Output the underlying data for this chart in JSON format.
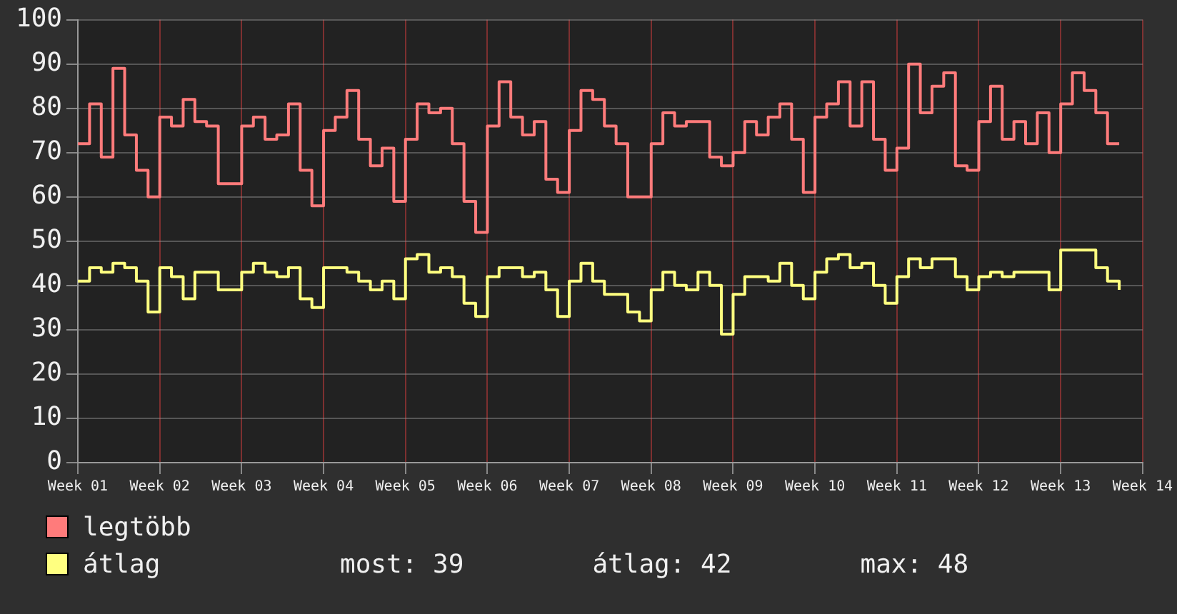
{
  "chart_data": {
    "type": "step",
    "categories": [
      "Week 01",
      null,
      null,
      null,
      null,
      null,
      null,
      "Week 02",
      null,
      null,
      null,
      null,
      null,
      null,
      "Week 03",
      null,
      null,
      null,
      null,
      null,
      null,
      "Week 04",
      null,
      null,
      null,
      null,
      null,
      null,
      "Week 05",
      null,
      null,
      null,
      null,
      null,
      null,
      "Week 06",
      null,
      null,
      null,
      null,
      null,
      null,
      "Week 07",
      null,
      null,
      null,
      null,
      null,
      null,
      "Week 08",
      null,
      null,
      null,
      null,
      null,
      null,
      "Week 09",
      null,
      null,
      null,
      null,
      null,
      null,
      "Week 10",
      null,
      null,
      null,
      null,
      null,
      null,
      "Week 11",
      null,
      null,
      null,
      null,
      null,
      null,
      "Week 12",
      null,
      null,
      null,
      null,
      null,
      null,
      "Week 13",
      null,
      null,
      null,
      null,
      null,
      null,
      "Week 14"
    ],
    "series": [
      {
        "name": "legtöbb",
        "color": "#ff7b7b",
        "values": [
          72,
          81,
          69,
          89,
          74,
          66,
          60,
          78,
          76,
          82,
          77,
          76,
          63,
          63,
          76,
          78,
          73,
          74,
          81,
          66,
          58,
          75,
          78,
          84,
          73,
          67,
          71,
          59,
          73,
          81,
          79,
          80,
          72,
          59,
          52,
          76,
          86,
          78,
          74,
          77,
          64,
          61,
          75,
          84,
          82,
          76,
          72,
          60,
          60,
          72,
          79,
          76,
          77,
          77,
          69,
          67,
          70,
          77,
          74,
          78,
          81,
          73,
          61,
          78,
          81,
          86,
          76,
          86,
          73,
          66,
          71,
          90,
          79,
          85,
          88,
          67,
          66,
          77,
          85,
          73,
          77,
          72,
          79,
          70,
          81,
          88,
          84,
          79,
          72,
          72,
          null,
          null
        ]
      },
      {
        "name": "átlag",
        "color": "#ffff80",
        "values": [
          41,
          44,
          43,
          45,
          44,
          41,
          34,
          44,
          42,
          37,
          43,
          43,
          39,
          39,
          43,
          45,
          43,
          42,
          44,
          37,
          35,
          44,
          44,
          43,
          41,
          39,
          41,
          37,
          46,
          47,
          43,
          44,
          42,
          36,
          33,
          42,
          44,
          44,
          42,
          43,
          39,
          33,
          41,
          45,
          41,
          38,
          38,
          34,
          32,
          39,
          43,
          40,
          39,
          43,
          40,
          29,
          38,
          42,
          42,
          41,
          45,
          40,
          37,
          43,
          46,
          47,
          44,
          45,
          40,
          36,
          42,
          46,
          44,
          46,
          46,
          42,
          39,
          42,
          43,
          42,
          43,
          43,
          43,
          39,
          48,
          48,
          48,
          44,
          41,
          39,
          null,
          null
        ]
      }
    ],
    "ylim": [
      0,
      100
    ],
    "yticks": [
      0,
      10,
      20,
      30,
      40,
      50,
      60,
      70,
      80,
      90,
      100
    ],
    "grid": true,
    "legend": "bottom",
    "annotations": [
      "most: 39",
      "átlag: 42",
      "max: 48"
    ]
  }
}
